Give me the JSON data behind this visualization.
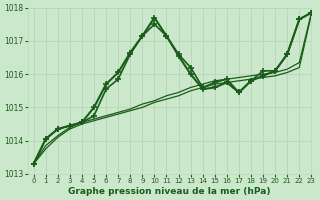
{
  "title": "Graphe pression niveau de la mer (hPa)",
  "bg_color": "#cce8cc",
  "grid_color": "#b8d8b8",
  "line_color": "#1a5c1a",
  "xlim": [
    -0.5,
    23
  ],
  "ylim": [
    1013,
    1018
  ],
  "xticks": [
    0,
    1,
    2,
    3,
    4,
    5,
    6,
    7,
    8,
    9,
    10,
    11,
    12,
    13,
    14,
    15,
    16,
    17,
    18,
    19,
    20,
    21,
    22,
    23
  ],
  "yticks": [
    1013,
    1014,
    1015,
    1016,
    1017,
    1018
  ],
  "series": [
    {
      "x": [
        0,
        1,
        2,
        3,
        4,
        5,
        6,
        7,
        8,
        9,
        10,
        11,
        12,
        13,
        14,
        15,
        16,
        17,
        18,
        19,
        20,
        21,
        22,
        23
      ],
      "y": [
        1013.3,
        1013.75,
        1014.1,
        1014.35,
        1014.5,
        1014.6,
        1014.7,
        1014.8,
        1014.9,
        1015.0,
        1015.15,
        1015.25,
        1015.35,
        1015.5,
        1015.6,
        1015.7,
        1015.75,
        1015.8,
        1015.85,
        1015.9,
        1015.95,
        1016.05,
        1016.2,
        1017.8
      ],
      "style": "-",
      "marker": null,
      "linewidth": 0.9
    },
    {
      "x": [
        0,
        1,
        2,
        3,
        4,
        5,
        6,
        7,
        8,
        9,
        10,
        11,
        12,
        13,
        14,
        15,
        16,
        17,
        18,
        19,
        20,
        21,
        22,
        23
      ],
      "y": [
        1013.3,
        1013.85,
        1014.15,
        1014.4,
        1014.55,
        1014.65,
        1014.75,
        1014.85,
        1014.95,
        1015.1,
        1015.2,
        1015.35,
        1015.45,
        1015.6,
        1015.7,
        1015.8,
        1015.85,
        1015.9,
        1015.95,
        1016.0,
        1016.05,
        1016.15,
        1016.35,
        1017.85
      ],
      "style": "-",
      "marker": null,
      "linewidth": 0.9
    },
    {
      "x": [
        0,
        1,
        2,
        3,
        4,
        5,
        6,
        7,
        8,
        9,
        10,
        11,
        12,
        13,
        14,
        15,
        16,
        17,
        18,
        19,
        20,
        21,
        22,
        23
      ],
      "y": [
        1013.3,
        1014.05,
        1014.35,
        1014.45,
        1014.55,
        1014.75,
        1015.55,
        1015.85,
        1016.6,
        1017.15,
        1017.5,
        1017.15,
        1016.6,
        1016.2,
        1015.6,
        1015.75,
        1015.85,
        1015.45,
        1015.8,
        1016.1,
        1016.1,
        1016.6,
        1017.65,
        1017.85
      ],
      "style": "-",
      "marker": "+",
      "linewidth": 1.2,
      "markersize": 4
    },
    {
      "x": [
        0,
        1,
        2,
        3,
        4,
        5,
        6,
        7,
        8,
        9,
        10,
        11,
        12,
        13,
        14,
        15,
        16,
        17,
        18,
        19,
        20,
        21,
        22,
        23
      ],
      "y": [
        1013.3,
        1014.05,
        1014.35,
        1014.45,
        1014.55,
        1015.0,
        1015.7,
        1016.05,
        1016.65,
        1017.15,
        1017.7,
        1017.15,
        1016.55,
        1016.0,
        1015.55,
        1015.6,
        1015.75,
        1015.45,
        1015.8,
        1015.95,
        1016.1,
        1016.6,
        1017.65,
        1017.85
      ],
      "style": "-",
      "marker": "+",
      "linewidth": 1.5,
      "markersize": 5
    }
  ]
}
